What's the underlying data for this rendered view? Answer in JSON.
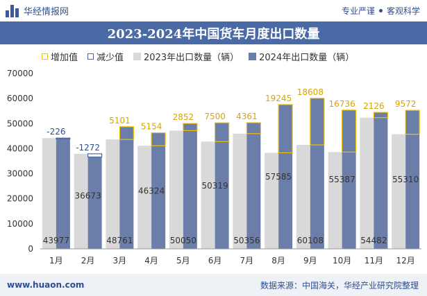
{
  "header": {
    "brand": "华经情报网",
    "tag1": "专业严谨",
    "tag2": "客观科学"
  },
  "title": "2023-2024年中国货车月度出口数量",
  "legend": {
    "increase": "增加值",
    "decrease": "减少值",
    "series2023": "2023年出口数量（辆）",
    "series2024": "2024年出口数量（辆）"
  },
  "footer": {
    "site": "www.huaon.com",
    "source": "数据来源：中国海关，华经产业研究院整理"
  },
  "colors": {
    "series2023": "#d9d9d9",
    "series2024": "#6b7da9",
    "increase": "#f2c200",
    "decrease": "#4a6aa5",
    "titlebar": "#4a6aa5"
  },
  "chart_data": {
    "type": "bar",
    "categories": [
      "1月",
      "2月",
      "3月",
      "4月",
      "5月",
      "6月",
      "7月",
      "8月",
      "9月",
      "10月",
      "11月",
      "12月"
    ],
    "series": [
      {
        "name": "2023年出口数量（辆）",
        "values": [
          44203,
          37945,
          43660,
          41170,
          47198,
          42819,
          45995,
          38340,
          41500,
          38651,
          52356,
          45738
        ]
      },
      {
        "name": "2024年出口数量（辆）",
        "values": [
          43977,
          36673,
          48761,
          46324,
          50050,
          50319,
          50356,
          57585,
          60108,
          55387,
          54482,
          55310
        ]
      }
    ],
    "change_values": [
      -226,
      -1272,
      5101,
      5154,
      2852,
      7500,
      4361,
      19245,
      18608,
      16736,
      2126,
      9572
    ],
    "change_labels": [
      "-226",
      "-1272",
      "5101",
      "5154",
      "2852",
      "7500",
      "4361",
      "19245",
      "18608",
      "16736",
      "2126",
      "9572"
    ],
    "value_labels": [
      "43977",
      "36673",
      "48761",
      "46324",
      "50050",
      "50319",
      "50356",
      "57585",
      "60108",
      "55387",
      "54482",
      "55310"
    ],
    "yticks": [
      "0",
      "10000",
      "20000",
      "30000",
      "40000",
      "50000",
      "60000",
      "70000"
    ],
    "ylim": [
      0,
      70000
    ],
    "grid": false,
    "legend_position": "top"
  }
}
